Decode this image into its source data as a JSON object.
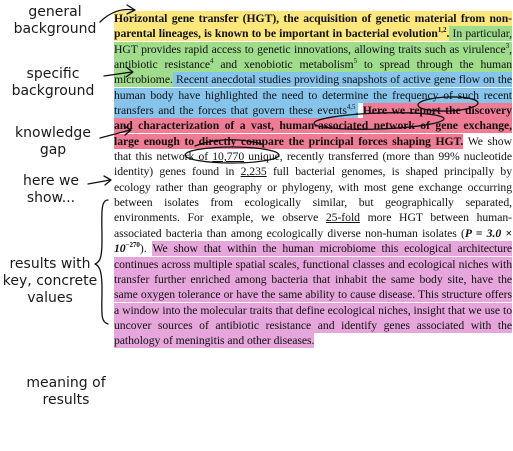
{
  "labels": {
    "general_background": "general\nbackground",
    "specific_background": "specific\nbackground",
    "knowledge_gap": "knowledge\ngap",
    "here_we_show": "here we\nshow...",
    "results": "results with\nkey, concrete\nvalues",
    "meaning": "meaning of\nresults"
  },
  "abstract": {
    "general_background": "Horizontal gene transfer (HGT), the acquisition of genetic material from non-parental lineages, is known to be important in bacterial evolution",
    "ref_1_2": "1,2",
    "specific_1": " In particular, HGT provides rapid access to genetic innovations, allowing traits such as virulence",
    "ref_3": "3",
    "specific_2": ", antibiotic resistance",
    "ref_4": "4",
    "specific_3": " and xenobiotic metabolism",
    "ref_5": "5",
    "specific_4": " to spread through the human microbiome.",
    "gap_1": " Recent anecdotal studies providing snapshots of active gene flow on the human body have highlighted the need to determine the frequency of such recent transfers and the forces that govern these events",
    "ref_4_5": "4,5",
    "gap_2": ".",
    "show": "Here we report the discovery and characterization of a vast, human-associated network of gene exchange, large enough to directly compare the principal forces shaping HGT.",
    "results_1": " We show that this network of ",
    "results_num_1": "10,770",
    "results_2": " unique, recently transferred (more than 99% nucleotide identity) genes found in ",
    "results_num_2": "2,235",
    "results_3": " full bacterial genomes, is shaped principally by ecology rather than geography or phylogeny, with most gene exchange occurring between isolates from ecologically similar, but geographically separated, environments. For example, we observe ",
    "results_num_3": "25-fold",
    "results_4": " more HGT between human-associated bacteria than among ecologically diverse non-human isolates (",
    "p_value": "P = 3.0 × 10",
    "p_exp": "−270",
    "results_5": ").",
    "meaning": "We show that within the human microbiome this ecological architecture continues across multiple spatial scales, functional classes and ecological niches with transfer further enriched among bacteria that inhabit the same body site, have the same oxygen tolerance or have the same ability to cause disease. This structure offers a window into the molecular traits that define ecological niches, insight that we use to uncover sources of antibiotic resistance and identify genes associated with the pathology of meningitis and other diseases."
  },
  "colors": {
    "general_background": "#fbe77b",
    "specific_background": "#9fdc8b",
    "knowledge_gap": "#86c4ec",
    "here_we_show": "#f07b94",
    "meaning": "#e6a6dc"
  }
}
